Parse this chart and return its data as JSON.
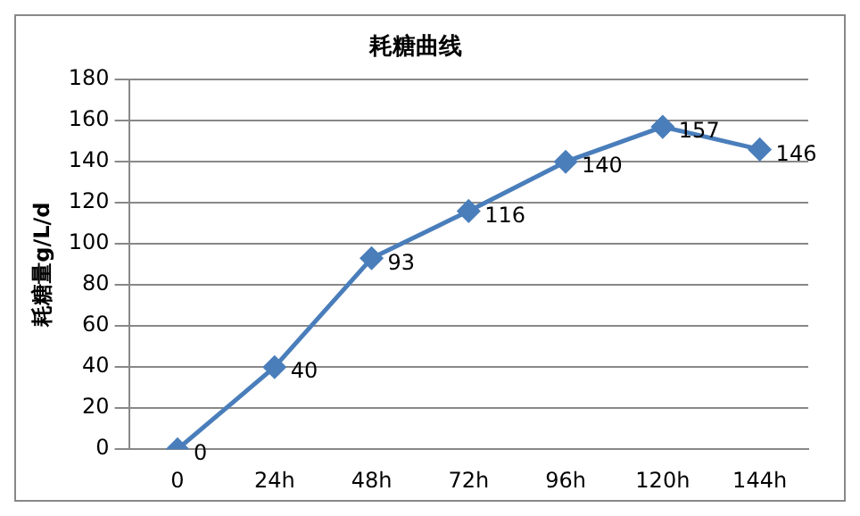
{
  "chart_data": {
    "type": "line",
    "title": "耗糖曲线",
    "ylabel": "耗糖量g/L/d",
    "categories": [
      "0",
      "24h",
      "48h",
      "72h",
      "96h",
      "120h",
      "144h"
    ],
    "series": [
      {
        "color": "#4a7ebb",
        "values": [
          0,
          40,
          93,
          116,
          140,
          157,
          146
        ]
      }
    ],
    "ylim": [
      0,
      180
    ],
    "yticks": [
      0,
      20,
      40,
      60,
      80,
      100,
      120,
      140,
      160,
      180
    ],
    "grid": "y",
    "legend": false,
    "marker": "diamond",
    "line_style": "solid",
    "data_labels": true
  }
}
